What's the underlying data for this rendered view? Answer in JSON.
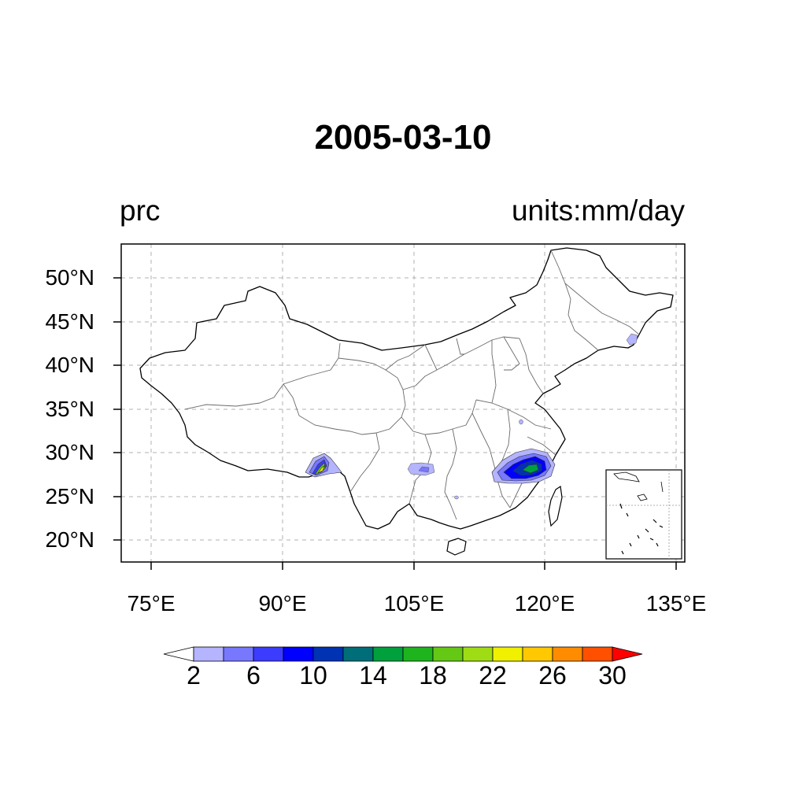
{
  "title": "2005-03-10",
  "left_label": "prc",
  "right_label": "units:mm/day",
  "map": {
    "lon_range": [
      71,
      136
    ],
    "lat_range": [
      17.5,
      54
    ],
    "lat_ticks": [
      {
        "value": 50,
        "label": "50°N"
      },
      {
        "value": 45,
        "label": "45°N"
      },
      {
        "value": 40,
        "label": "40°N"
      },
      {
        "value": 35,
        "label": "35°N"
      },
      {
        "value": 30,
        "label": "30°N"
      },
      {
        "value": 25,
        "label": "25°N"
      },
      {
        "value": 20,
        "label": "20°N"
      }
    ],
    "lon_ticks": [
      {
        "value": 75,
        "label": "75°E"
      },
      {
        "value": 90,
        "label": "90°E"
      },
      {
        "value": 105,
        "label": "105°E"
      },
      {
        "value": 120,
        "label": "120°E"
      },
      {
        "value": 135,
        "label": "135°E"
      }
    ],
    "grid": "dashed",
    "inset": "south-china-sea (bottom-right)"
  },
  "colorbar": {
    "levels": [
      2,
      4,
      6,
      8,
      10,
      12,
      14,
      16,
      18,
      20,
      22,
      24,
      26,
      28,
      30
    ],
    "labels": [
      "2",
      "6",
      "10",
      "14",
      "18",
      "22",
      "26",
      "30"
    ],
    "colors": [
      "#ffffff",
      "#b4b4ff",
      "#7878ff",
      "#3c3cff",
      "#0000ff",
      "#0032b4",
      "#006e78",
      "#00a03c",
      "#1eb41e",
      "#64c814",
      "#a0dc14",
      "#f0f000",
      "#ffc800",
      "#ff8c00",
      "#ff5000",
      "#ff0000"
    ],
    "extend": "both"
  },
  "precip_features": [
    {
      "name": "southeast-china",
      "peak_mm_day": 16
    },
    {
      "name": "southeast-tibet",
      "peak_mm_day": 24
    },
    {
      "name": "sichuan-basin",
      "peak_mm_day": 6
    },
    {
      "name": "northeast-border",
      "peak_mm_day": 4
    }
  ]
}
